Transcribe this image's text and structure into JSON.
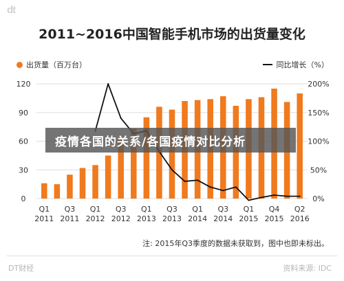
{
  "logo": "dt",
  "banner_text": "疫情各国的关系/各国疫情对比分析",
  "note": "注: 2015年Q3季度的数据未获取到，图中也即未标出。",
  "footer": {
    "left": "DT财经",
    "right": "资料来源: IDC"
  },
  "colors": {
    "bar": "#f07a1e",
    "line": "#111111",
    "grid": "#dddddd"
  },
  "chart_data": {
    "type": "bar",
    "title": "2011~2016中国智能手机市场的出货量变化",
    "legend_position": "top",
    "categories": [
      "Q1 2011",
      "Q2 2011",
      "Q3 2011",
      "Q4 2011",
      "Q1 2012",
      "Q2 2012",
      "Q3 2012",
      "Q4 2012",
      "Q1 2013",
      "Q2 2013",
      "Q3 2013",
      "Q4 2013",
      "Q1 2014",
      "Q2 2014",
      "Q3 2014",
      "Q4 2014",
      "Q1 2015",
      "Q2 2015",
      "Q4 2015",
      "Q1 2016",
      "Q2 2016"
    ],
    "x_tick_labels": [
      {
        "q": "Q1",
        "y": "2011"
      },
      {
        "q": "Q3",
        "y": "2011"
      },
      {
        "q": "Q1",
        "y": "2012"
      },
      {
        "q": "Q3",
        "y": "2012"
      },
      {
        "q": "Q1",
        "y": "2013"
      },
      {
        "q": "Q3",
        "y": "2013"
      },
      {
        "q": "Q1",
        "y": "2014"
      },
      {
        "q": "Q3",
        "y": "2014"
      },
      {
        "q": "Q1",
        "y": "2015"
      },
      {
        "q": "Q4",
        "y": "2015"
      },
      {
        "q": "Q2",
        "y": "2016"
      }
    ],
    "x_tick_category_index": [
      0,
      2,
      4,
      6,
      8,
      10,
      12,
      14,
      16,
      18,
      20
    ],
    "series": [
      {
        "name": "出货量（百万台）",
        "axis": "left",
        "values": [
          16,
          15,
          25,
          32,
          35,
          45,
          62,
          73,
          85,
          96,
          93,
          102,
          103,
          104,
          107,
          97,
          104,
          106,
          115,
          101,
          110
        ]
      },
      {
        "name": "同比增长（%）",
        "axis": "right",
        "type": "line",
        "values": [
          null,
          null,
          null,
          null,
          118,
          200,
          140,
          113,
          118,
          82,
          50,
          30,
          32,
          20,
          14,
          20,
          -3,
          2,
          6,
          4,
          4
        ]
      }
    ],
    "y_left": {
      "ylim": [
        0,
        120
      ],
      "ticks": [
        "0",
        "30",
        "60",
        "90",
        "120"
      ]
    },
    "y_right": {
      "ylim": [
        0,
        200
      ],
      "ticks": [
        "0%",
        "50%",
        "100%",
        "150%",
        "200%"
      ]
    },
    "grid": true
  }
}
